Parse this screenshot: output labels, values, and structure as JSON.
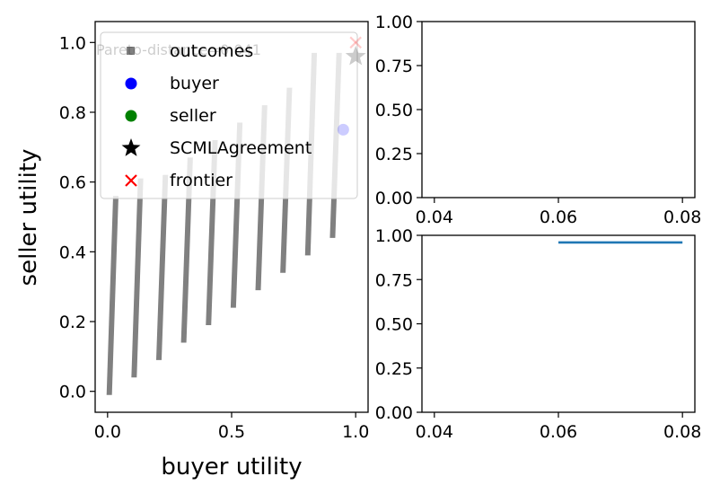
{
  "chart_data": [
    {
      "type": "scatter",
      "xlabel": "buyer utility",
      "ylabel": "seller utility",
      "xlim": [
        -0.05,
        1.05
      ],
      "ylim": [
        -0.06,
        1.06
      ],
      "xticks": [
        "0.0",
        "0.5",
        "1.0"
      ],
      "yticks": [
        "0.0",
        "0.2",
        "0.4",
        "0.6",
        "0.8",
        "1.0"
      ],
      "annotation": "Pareto-distance=0.041",
      "legend_placement": "upper-left",
      "legend": [
        "outcomes",
        "buyer",
        "seller",
        "SCMLAgreement",
        "frontier"
      ],
      "colors": {
        "outcomes": "#808080",
        "buyer": "#0000ff",
        "seller": "#008000",
        "agreement": "#000000",
        "frontier": "#ff0000"
      },
      "outcome_bands": [
        {
          "x_start": 0.0,
          "y_start": 0.0,
          "y_end": 0.55
        },
        {
          "x_start": 0.1,
          "y_start": 0.05,
          "y_end": 0.6
        },
        {
          "x_start": 0.2,
          "y_start": 0.1,
          "y_end": 0.61
        },
        {
          "x_start": 0.3,
          "y_start": 0.15,
          "y_end": 0.66
        },
        {
          "x_start": 0.4,
          "y_start": 0.2,
          "y_end": 0.71
        },
        {
          "x_start": 0.5,
          "y_start": 0.25,
          "y_end": 0.76
        },
        {
          "x_start": 0.6,
          "y_start": 0.3,
          "y_end": 0.81
        },
        {
          "x_start": 0.7,
          "y_start": 0.35,
          "y_end": 0.86
        },
        {
          "x_start": 0.8,
          "y_start": 0.4,
          "y_end": 0.96
        },
        {
          "x_start": 0.9,
          "y_start": 0.45,
          "y_end": 0.96
        }
      ],
      "band_x_width": 0.04,
      "buyer_point": {
        "x": 0.95,
        "y": 0.75
      },
      "agreement_point": {
        "x": 1.0,
        "y": 0.96
      },
      "frontier_point": {
        "x": 1.0,
        "y": 1.0
      }
    },
    {
      "type": "line",
      "xlim": [
        0.038,
        0.082
      ],
      "ylim": [
        0.0,
        1.0
      ],
      "xticks": [
        "0.04",
        "0.06",
        "0.08"
      ],
      "yticks": [
        "0.00",
        "0.25",
        "0.50",
        "0.75",
        "1.00"
      ],
      "series": []
    },
    {
      "type": "line",
      "xlim": [
        0.038,
        0.082
      ],
      "ylim": [
        0.0,
        1.0
      ],
      "xticks": [
        "0.04",
        "0.06",
        "0.08"
      ],
      "yticks": [
        "0.00",
        "0.25",
        "0.50",
        "0.75",
        "1.00"
      ],
      "line_color": "#1f77b4",
      "series": [
        {
          "x": [
            0.06,
            0.08
          ],
          "y": [
            0.96,
            0.96
          ]
        }
      ]
    }
  ]
}
